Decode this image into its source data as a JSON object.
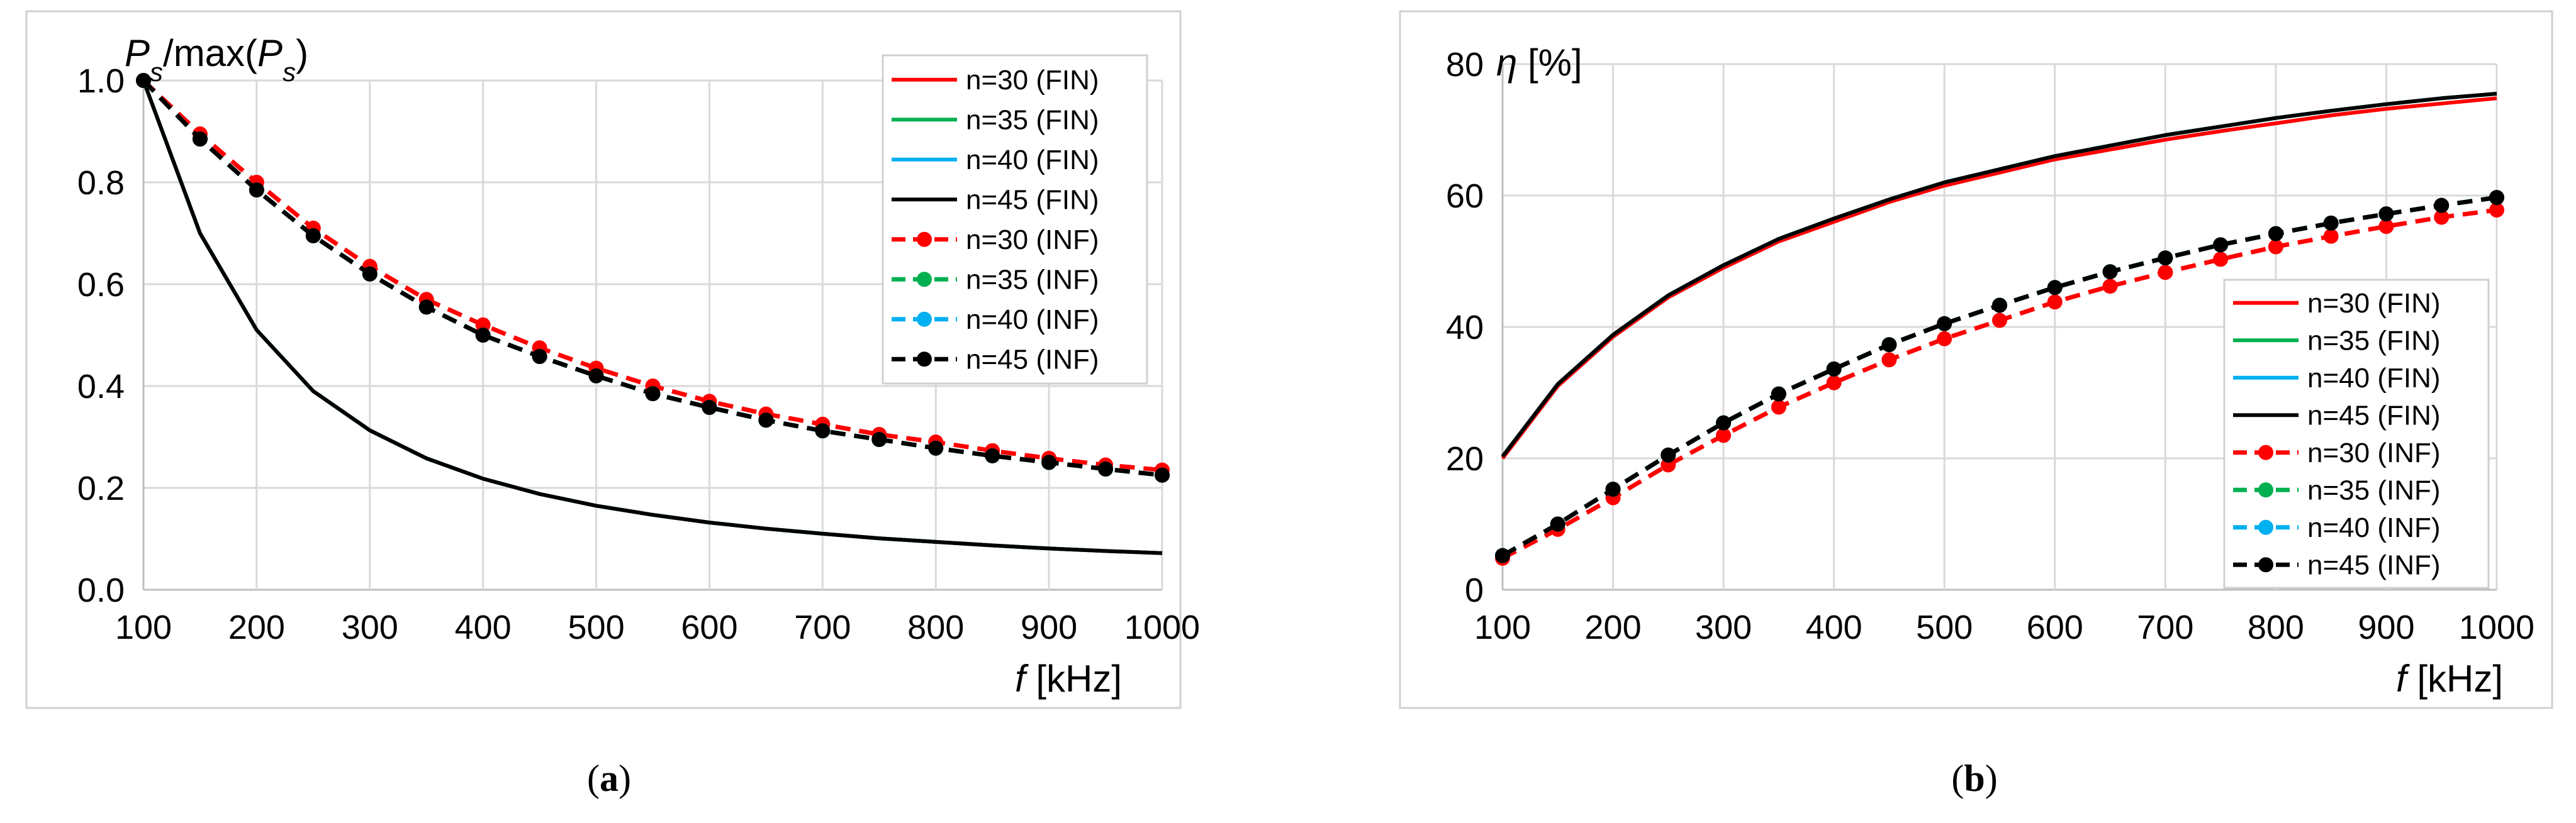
{
  "colors": {
    "n30": "#ff0000",
    "n35": "#00b050",
    "n40": "#00b0f0",
    "n45": "#000000"
  },
  "chart_data": [
    {
      "type": "line",
      "caption_open": "(",
      "caption_letter": "a",
      "caption_close": ")",
      "ylabel_parts": [
        "P",
        "s",
        "/max(",
        "P",
        "s",
        ")"
      ],
      "xlabel_italic": "f",
      "xlabel_rest": " [kHz]",
      "xlim": [
        100,
        1000
      ],
      "ylim": [
        0,
        1.0
      ],
      "x_ticks": [
        "100",
        "200",
        "300",
        "400",
        "500",
        "600",
        "700",
        "800",
        "900",
        "1000"
      ],
      "y_ticks": [
        "0.0",
        "0.2",
        "0.4",
        "0.6",
        "0.8",
        "1.0"
      ],
      "legend_position": "top-right",
      "x": [
        100,
        150,
        200,
        250,
        300,
        350,
        400,
        450,
        500,
        550,
        600,
        650,
        700,
        750,
        800,
        850,
        900,
        950,
        1000
      ],
      "series": [
        {
          "name": "n=30 (FIN)",
          "style": "solid",
          "color_key": "n30",
          "values": [
            1.0,
            0.7,
            0.51,
            0.39,
            0.313,
            0.258,
            0.218,
            0.188,
            0.165,
            0.147,
            0.132,
            0.12,
            0.11,
            0.101,
            0.094,
            0.087,
            0.081,
            0.076,
            0.072
          ]
        },
        {
          "name": "n=35 (FIN)",
          "style": "solid",
          "color_key": "n35",
          "values": [
            1.0,
            0.7,
            0.51,
            0.39,
            0.313,
            0.258,
            0.218,
            0.188,
            0.165,
            0.147,
            0.132,
            0.12,
            0.11,
            0.101,
            0.094,
            0.087,
            0.081,
            0.076,
            0.072
          ]
        },
        {
          "name": "n=40 (FIN)",
          "style": "solid",
          "color_key": "n40",
          "values": [
            1.0,
            0.7,
            0.51,
            0.39,
            0.313,
            0.258,
            0.218,
            0.188,
            0.165,
            0.147,
            0.132,
            0.12,
            0.11,
            0.101,
            0.094,
            0.087,
            0.081,
            0.076,
            0.072
          ]
        },
        {
          "name": "n=45 (FIN)",
          "style": "solid",
          "color_key": "n45",
          "values": [
            1.0,
            0.7,
            0.51,
            0.39,
            0.313,
            0.258,
            0.218,
            0.188,
            0.165,
            0.147,
            0.132,
            0.12,
            0.11,
            0.101,
            0.094,
            0.087,
            0.081,
            0.076,
            0.072
          ]
        },
        {
          "name": "n=30 (INF)",
          "style": "dashed",
          "color_key": "n30",
          "values": [
            1.0,
            0.895,
            0.8,
            0.71,
            0.635,
            0.57,
            0.52,
            0.475,
            0.435,
            0.4,
            0.37,
            0.345,
            0.325,
            0.305,
            0.29,
            0.273,
            0.258,
            0.245,
            0.235
          ]
        },
        {
          "name": "n=35 (INF)",
          "style": "dashed",
          "color_key": "n35",
          "values": [
            1.0,
            0.885,
            0.785,
            0.695,
            0.62,
            0.555,
            0.5,
            0.458,
            0.42,
            0.385,
            0.358,
            0.333,
            0.312,
            0.295,
            0.278,
            0.263,
            0.25,
            0.237,
            0.225
          ]
        },
        {
          "name": "n=40 (INF)",
          "style": "dashed",
          "color_key": "n40",
          "values": [
            1.0,
            0.885,
            0.785,
            0.695,
            0.62,
            0.555,
            0.5,
            0.458,
            0.42,
            0.385,
            0.358,
            0.333,
            0.312,
            0.295,
            0.278,
            0.263,
            0.25,
            0.237,
            0.225
          ]
        },
        {
          "name": "n=45 (INF)",
          "style": "dashed",
          "color_key": "n45",
          "values": [
            1.0,
            0.885,
            0.785,
            0.695,
            0.62,
            0.555,
            0.5,
            0.458,
            0.42,
            0.385,
            0.358,
            0.333,
            0.312,
            0.295,
            0.278,
            0.263,
            0.25,
            0.237,
            0.225
          ]
        }
      ]
    },
    {
      "type": "line",
      "caption_open": "(",
      "caption_letter": "b",
      "caption_close": ")",
      "ylabel_italic": "η",
      "ylabel_rest": " [%]",
      "xlabel_italic": "f",
      "xlabel_rest": " [kHz]",
      "xlim": [
        100,
        1000
      ],
      "ylim": [
        0,
        80
      ],
      "x_ticks": [
        "100",
        "200",
        "300",
        "400",
        "500",
        "600",
        "700",
        "800",
        "900",
        "1000"
      ],
      "y_ticks": [
        "0",
        "20",
        "40",
        "60",
        "80"
      ],
      "legend_position": "bottom-right",
      "x": [
        100,
        150,
        200,
        250,
        300,
        350,
        400,
        450,
        500,
        550,
        600,
        650,
        700,
        750,
        800,
        850,
        900,
        950,
        1000
      ],
      "series": [
        {
          "name": "n=30 (FIN)",
          "style": "solid",
          "color_key": "n30",
          "values": [
            20,
            31,
            38.5,
            44.5,
            49,
            53,
            56,
            59,
            61.5,
            63.5,
            65.5,
            67,
            68.5,
            69.8,
            71,
            72.2,
            73.2,
            74,
            74.8
          ]
        },
        {
          "name": "n=35 (FIN)",
          "style": "solid",
          "color_key": "n35",
          "values": [
            20.3,
            31.3,
            38.8,
            44.8,
            49.4,
            53.4,
            56.5,
            59.4,
            62,
            64,
            66,
            67.6,
            69.2,
            70.5,
            71.8,
            72.9,
            73.9,
            74.8,
            75.5
          ]
        },
        {
          "name": "n=40 (FIN)",
          "style": "solid",
          "color_key": "n40",
          "values": [
            20.3,
            31.3,
            38.8,
            44.8,
            49.4,
            53.4,
            56.5,
            59.4,
            62,
            64,
            66,
            67.6,
            69.2,
            70.5,
            71.8,
            72.9,
            73.9,
            74.8,
            75.5
          ]
        },
        {
          "name": "n=45 (FIN)",
          "style": "solid",
          "color_key": "n45",
          "values": [
            20.3,
            31.3,
            38.8,
            44.8,
            49.4,
            53.4,
            56.5,
            59.4,
            62,
            64,
            66,
            67.6,
            69.2,
            70.5,
            71.8,
            72.9,
            73.9,
            74.8,
            75.5
          ]
        },
        {
          "name": "n=30 (INF)",
          "style": "dashed",
          "color_key": "n30",
          "values": [
            4.8,
            9.2,
            14,
            19,
            23.5,
            27.8,
            31.5,
            35,
            38.2,
            41,
            43.8,
            46.2,
            48.3,
            50.3,
            52.2,
            53.8,
            55.3,
            56.7,
            57.8
          ]
        },
        {
          "name": "n=35 (INF)",
          "style": "dashed",
          "color_key": "n35",
          "values": [
            5.2,
            10,
            15.3,
            20.5,
            25.4,
            29.8,
            33.6,
            37.3,
            40.5,
            43.3,
            46,
            48.4,
            50.5,
            52.5,
            54.2,
            55.8,
            57.2,
            58.5,
            59.7
          ]
        },
        {
          "name": "n=40 (INF)",
          "style": "dashed",
          "color_key": "n40",
          "values": [
            5.2,
            10,
            15.3,
            20.5,
            25.4,
            29.8,
            33.6,
            37.3,
            40.5,
            43.3,
            46,
            48.4,
            50.5,
            52.5,
            54.2,
            55.8,
            57.2,
            58.5,
            59.7
          ]
        },
        {
          "name": "n=45 (INF)",
          "style": "dashed",
          "color_key": "n45",
          "values": [
            5.2,
            10,
            15.3,
            20.5,
            25.4,
            29.8,
            33.6,
            37.3,
            40.5,
            43.3,
            46,
            48.4,
            50.5,
            52.5,
            54.2,
            55.8,
            57.2,
            58.5,
            59.7
          ]
        }
      ]
    }
  ]
}
